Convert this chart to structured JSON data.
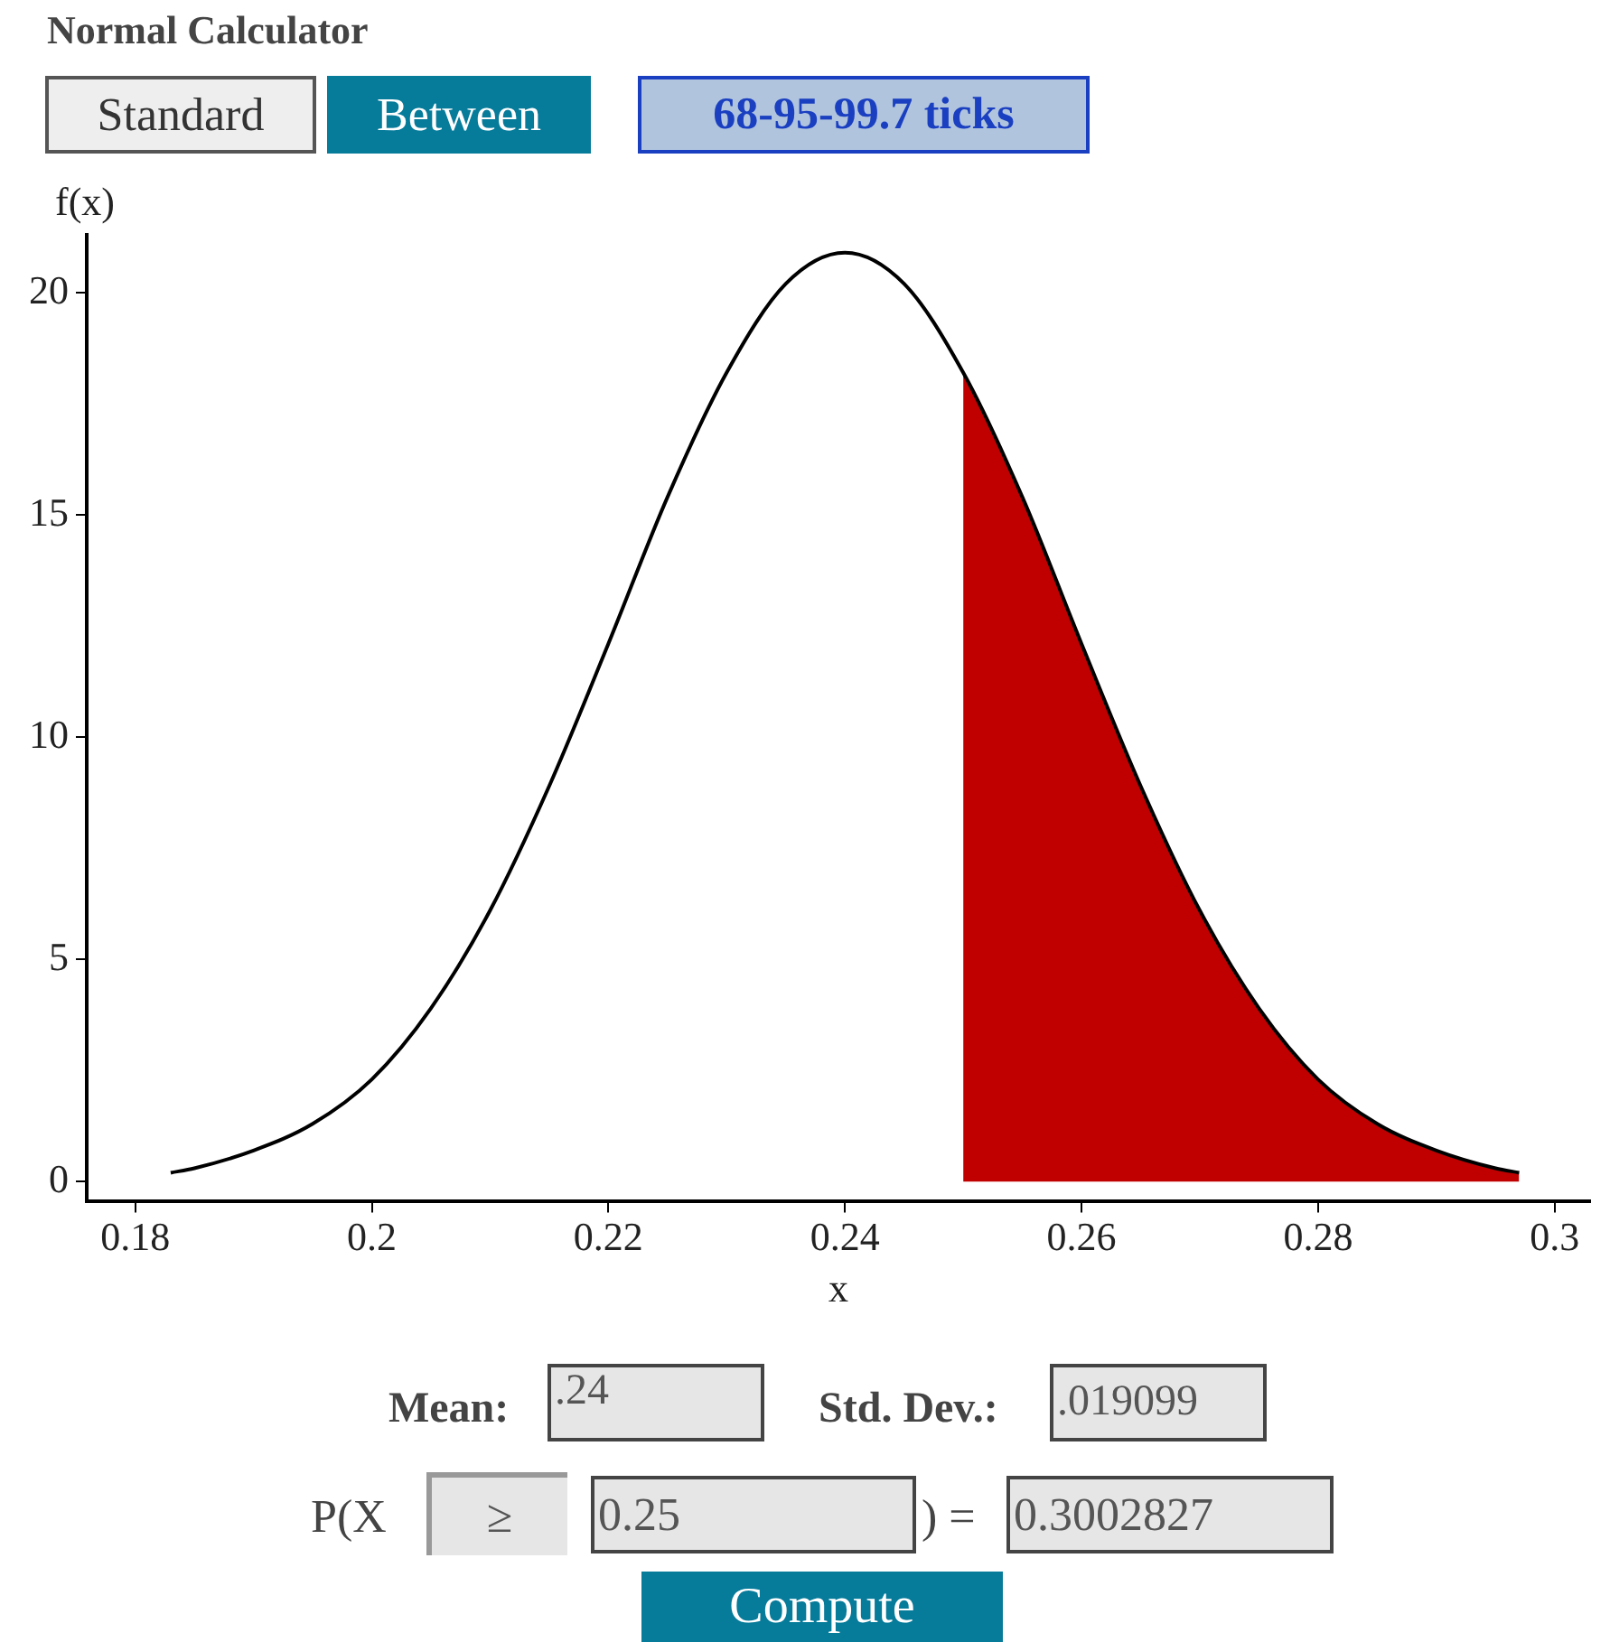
{
  "chart_data": {
    "type": "line",
    "title": "Normal Calculator",
    "xlabel": "x",
    "ylabel": "f(x)",
    "annotations": [
      "Standard",
      "Between",
      "68-95-99.7 ticks",
      "Mean:",
      ".24",
      "Std. Dev.:",
      ".019099",
      "P(X",
      "≥",
      "0.25",
      ") =",
      "0.3002827",
      "Compute"
    ],
    "xlim": [
      0.1759,
      0.303
    ],
    "xticks": [
      0.18,
      0.2,
      0.22,
      0.24,
      0.26,
      0.28,
      0.3
    ],
    "ylim": [
      -0.45,
      21.3
    ],
    "yticks": [
      0,
      5,
      10,
      15,
      20
    ],
    "grid": false,
    "legend": false,
    "marker": "none",
    "line_style": "solid",
    "series": [
      {
        "type": "line",
        "color": "#000000",
        "x": [
          0.183,
          0.185,
          0.19,
          0.195,
          0.2,
          0.205,
          0.21,
          0.215,
          0.22,
          0.225,
          0.23,
          0.235,
          0.24,
          0.245,
          0.25,
          0.255,
          0.26,
          0.265,
          0.27,
          0.275,
          0.28,
          0.285,
          0.29,
          0.295,
          0.297
        ],
        "values": [
          0.2,
          0.3,
          0.7,
          1.3,
          2.3,
          3.9,
          6.1,
          8.9,
          12.1,
          15.4,
          18.2,
          20.2,
          20.9,
          20.2,
          18.2,
          15.4,
          12.1,
          8.9,
          6.1,
          3.9,
          2.3,
          1.3,
          0.7,
          0.3,
          0.2
        ]
      },
      {
        "type": "area",
        "color": "#c00000",
        "x": [
          0.25,
          0.255,
          0.26,
          0.265,
          0.27,
          0.275,
          0.28,
          0.285,
          0.29,
          0.295,
          0.297
        ],
        "values": [
          18.2,
          15.4,
          12.1,
          8.9,
          6.1,
          3.9,
          2.3,
          1.3,
          0.7,
          0.3,
          0.2
        ]
      }
    ]
  }
}
